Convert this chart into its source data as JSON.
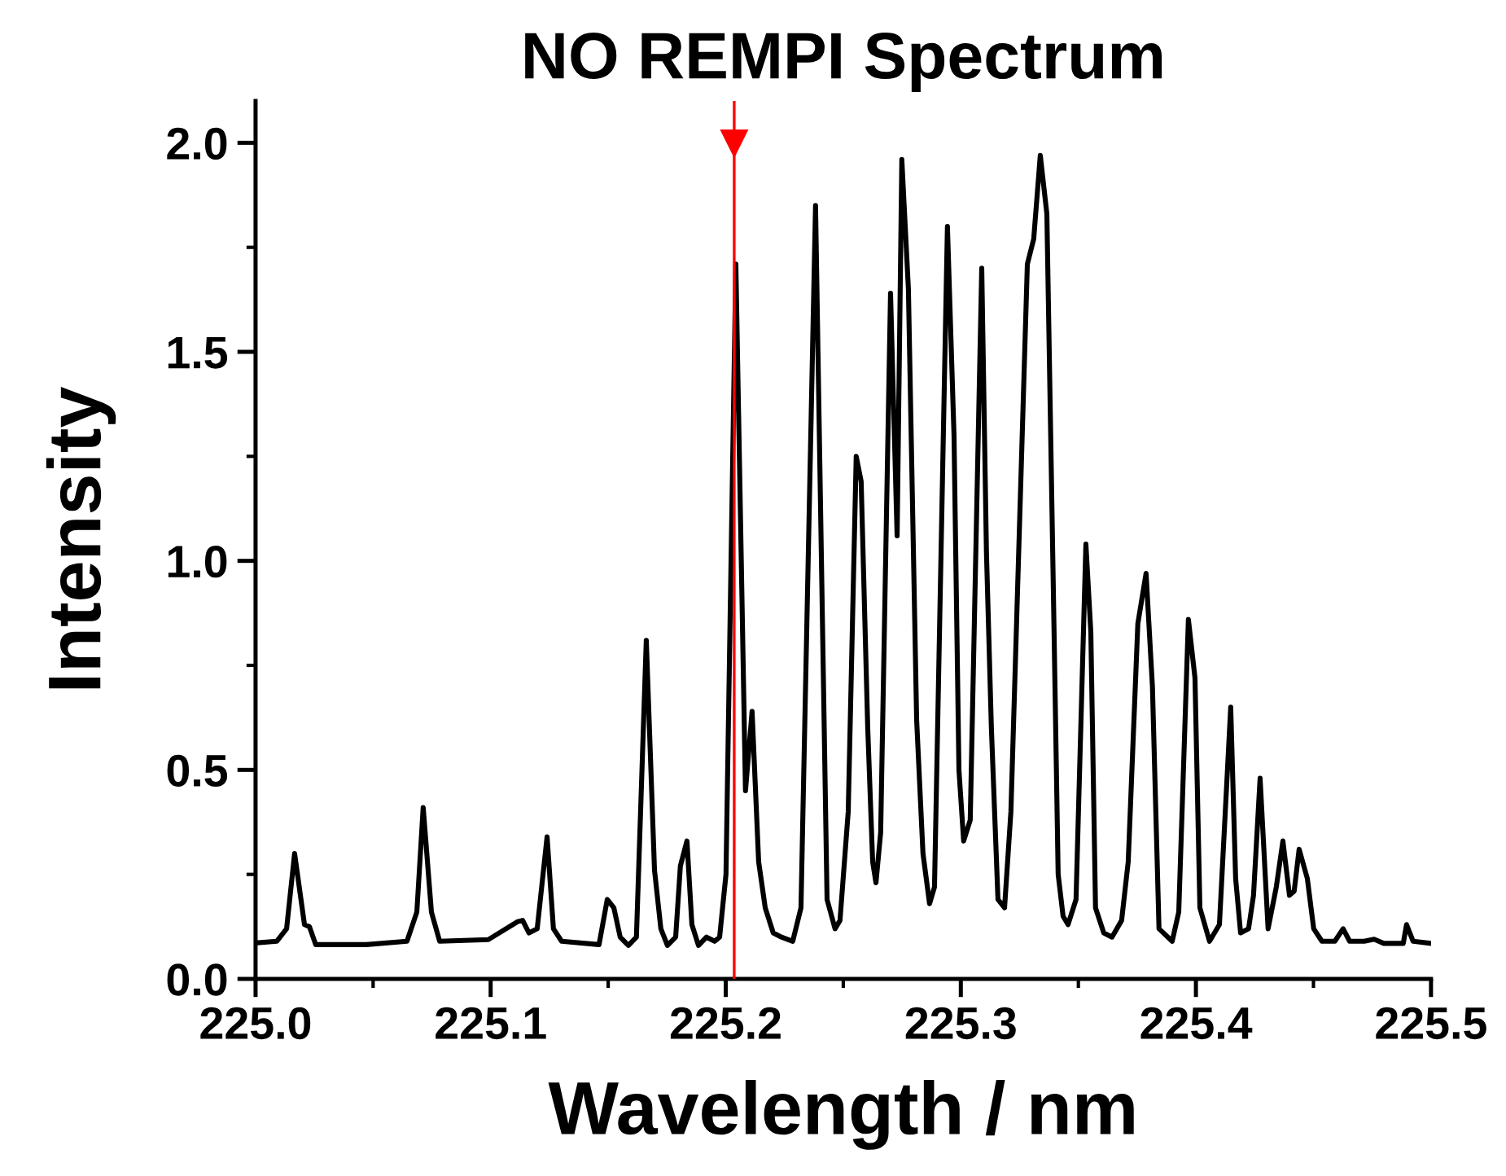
{
  "chart_data": {
    "type": "line",
    "title": "NO REMPI Spectrum",
    "xlabel": "Wavelength / nm",
    "ylabel": "Intensity",
    "xlim": [
      225.0,
      225.5
    ],
    "xticks": [
      {
        "value": 225.0,
        "label": "225.0"
      },
      {
        "value": 225.05,
        "label": null
      },
      {
        "value": 225.1,
        "label": "225.1"
      },
      {
        "value": 225.15,
        "label": null
      },
      {
        "value": 225.2,
        "label": "225.2"
      },
      {
        "value": 225.25,
        "label": null
      },
      {
        "value": 225.3,
        "label": "225.3"
      },
      {
        "value": 225.35,
        "label": null
      },
      {
        "value": 225.4,
        "label": "225.4"
      },
      {
        "value": 225.45,
        "label": null
      },
      {
        "value": 225.5,
        "label": "225.5"
      }
    ],
    "ylim": [
      0,
      2.1
    ],
    "yticks": [
      {
        "value": 0,
        "label": "0.0"
      },
      {
        "value": 0.25,
        "label": null
      },
      {
        "value": 0.5,
        "label": "0.5"
      },
      {
        "value": 0.75,
        "label": null
      },
      {
        "value": 1.0,
        "label": "1.0"
      },
      {
        "value": 1.25,
        "label": null
      },
      {
        "value": 1.5,
        "label": "1.5"
      },
      {
        "value": 1.75,
        "label": null
      },
      {
        "value": 2.0,
        "label": "2.0"
      }
    ],
    "grid": false,
    "legend": false,
    "marker": "none",
    "line_style": "solid",
    "ref_lines": [
      {
        "axis": "x",
        "value": 225.2036,
        "color": "#ff0000",
        "line_style": "solid"
      }
    ],
    "series": [
      {
        "color": "#000000",
        "x": [
          225.0,
          225.009,
          225.0132,
          225.0166,
          225.0208,
          225.0229,
          225.0256,
          225.0471,
          225.0644,
          225.0686,
          225.0713,
          225.0748,
          225.0783,
          225.099,
          225.1115,
          225.1136,
          225.1163,
          225.1198,
          225.124,
          225.1267,
          225.1302,
          225.1461,
          225.1496,
          225.1524,
          225.1551,
          225.1586,
          225.162,
          225.1662,
          225.1697,
          225.1724,
          225.1752,
          225.1787,
          225.1807,
          225.1835,
          225.1856,
          225.1884,
          225.1918,
          225.1953,
          225.1974,
          225.2001,
          225.2043,
          225.2084,
          225.2112,
          225.214,
          225.2168,
          225.2202,
          225.2237,
          225.2285,
          225.232,
          225.2382,
          225.2431,
          225.2465,
          225.2486,
          225.2521,
          225.2555,
          225.2576,
          225.2604,
          225.2625,
          225.2639,
          225.2659,
          225.2701,
          225.2729,
          225.2749,
          225.2777,
          225.2812,
          225.2839,
          225.2867,
          225.2888,
          225.2943,
          225.2971,
          225.2992,
          225.3012,
          225.304,
          225.3089,
          225.3109,
          225.313,
          225.3158,
          225.3186,
          225.3213,
          225.3283,
          225.331,
          225.3338,
          225.3366,
          225.3393,
          225.3414,
          225.3435,
          225.3456,
          225.349,
          225.3532,
          225.3553,
          225.3573,
          225.3608,
          225.3643,
          225.3684,
          225.3712,
          225.3753,
          225.3788,
          225.3815,
          225.3843,
          225.3899,
          225.3927,
          225.3968,
          225.3996,
          225.4017,
          225.4058,
          225.41,
          225.4148,
          225.4169,
          225.419,
          225.4224,
          225.4245,
          225.4273,
          225.4307,
          225.4342,
          225.437,
          225.4398,
          225.4418,
          225.4439,
          225.4474,
          225.4501,
          225.4536,
          225.4591,
          225.4626,
          225.4654,
          225.4716,
          225.4758,
          225.4799,
          225.4882,
          225.4896,
          225.4924,
          225.5
        ],
        "values": [
          0.086,
          0.09,
          0.12,
          0.3,
          0.13,
          0.125,
          0.082,
          0.082,
          0.09,
          0.16,
          0.41,
          0.16,
          0.09,
          0.094,
          0.137,
          0.14,
          0.11,
          0.12,
          0.34,
          0.12,
          0.09,
          0.082,
          0.19,
          0.17,
          0.1,
          0.08,
          0.1,
          0.81,
          0.26,
          0.12,
          0.08,
          0.1,
          0.27,
          0.33,
          0.13,
          0.08,
          0.1,
          0.09,
          0.1,
          0.25,
          1.71,
          0.45,
          0.64,
          0.28,
          0.17,
          0.11,
          0.1,
          0.09,
          0.17,
          1.85,
          0.19,
          0.12,
          0.14,
          0.4,
          1.25,
          1.19,
          0.6,
          0.28,
          0.23,
          0.35,
          1.64,
          1.06,
          1.96,
          1.65,
          0.62,
          0.3,
          0.18,
          0.22,
          1.8,
          1.3,
          0.5,
          0.33,
          0.38,
          1.7,
          1.02,
          0.6,
          0.19,
          0.17,
          0.4,
          1.71,
          1.77,
          1.97,
          1.83,
          0.95,
          0.25,
          0.15,
          0.13,
          0.19,
          1.04,
          0.83,
          0.17,
          0.11,
          0.1,
          0.14,
          0.28,
          0.85,
          0.97,
          0.7,
          0.12,
          0.09,
          0.16,
          0.86,
          0.72,
          0.17,
          0.09,
          0.13,
          0.65,
          0.24,
          0.11,
          0.12,
          0.2,
          0.48,
          0.12,
          0.22,
          0.33,
          0.2,
          0.21,
          0.31,
          0.24,
          0.12,
          0.09,
          0.09,
          0.12,
          0.09,
          0.09,
          0.095,
          0.085,
          0.085,
          0.13,
          0.09,
          0.085
        ]
      }
    ]
  }
}
